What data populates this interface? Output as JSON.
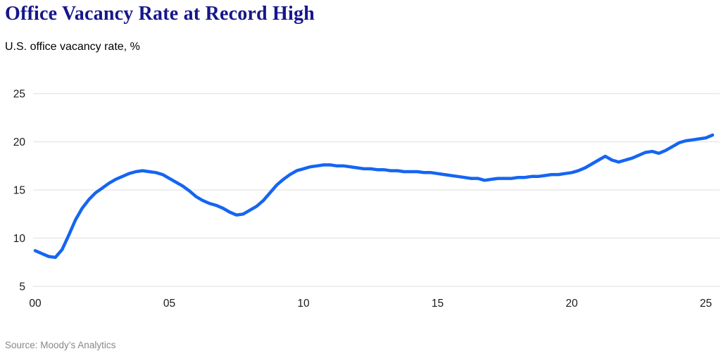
{
  "header": {
    "title": "Office Vacancy Rate at Record High",
    "subtitle": "U.S. office vacancy rate, %"
  },
  "footer": {
    "source": "Source: Moody’s Analytics"
  },
  "chart_data": {
    "type": "line",
    "title": "Office Vacancy Rate at Record High",
    "subtitle": "U.S. office vacancy rate, %",
    "source": "Source: Moody’s Analytics",
    "xlabel": "",
    "ylabel": "",
    "frequency": "quarterly",
    "x_start": 2000,
    "x_step": 0.25,
    "x_end": 2025.25,
    "series": [
      {
        "name": "U.S. office vacancy rate (%)",
        "values": [
          8.7,
          8.4,
          8.1,
          8.0,
          8.8,
          10.3,
          11.9,
          13.1,
          14.0,
          14.7,
          15.2,
          15.7,
          16.1,
          16.4,
          16.7,
          16.9,
          17.0,
          16.9,
          16.8,
          16.6,
          16.2,
          15.8,
          15.4,
          14.9,
          14.3,
          13.9,
          13.6,
          13.4,
          13.1,
          12.7,
          12.4,
          12.5,
          12.9,
          13.3,
          13.9,
          14.7,
          15.5,
          16.1,
          16.6,
          17.0,
          17.2,
          17.4,
          17.5,
          17.6,
          17.6,
          17.5,
          17.5,
          17.4,
          17.3,
          17.2,
          17.2,
          17.1,
          17.1,
          17.0,
          17.0,
          16.9,
          16.9,
          16.9,
          16.8,
          16.8,
          16.7,
          16.6,
          16.5,
          16.4,
          16.3,
          16.2,
          16.2,
          16.0,
          16.1,
          16.2,
          16.2,
          16.2,
          16.3,
          16.3,
          16.4,
          16.4,
          16.5,
          16.6,
          16.6,
          16.7,
          16.8,
          17.0,
          17.3,
          17.7,
          18.1,
          18.5,
          18.1,
          17.9,
          18.1,
          18.3,
          18.6,
          18.9,
          19.0,
          18.8,
          19.1,
          19.5,
          19.9,
          20.1,
          20.2,
          20.3,
          20.4,
          20.7
        ]
      }
    ],
    "yticks": [
      5,
      10,
      15,
      20,
      25
    ],
    "xticks": [
      {
        "year": 2000,
        "label": "00"
      },
      {
        "year": 2005,
        "label": "05"
      },
      {
        "year": 2010,
        "label": "10"
      },
      {
        "year": 2015,
        "label": "15"
      },
      {
        "year": 2020,
        "label": "20"
      },
      {
        "year": 2025,
        "label": "25"
      }
    ],
    "ylim": [
      5,
      25
    ],
    "grid": "horizontal",
    "legend": "none",
    "colors": {
      "line": "#1565f2",
      "grid": "#e8e8e8",
      "tick_text": "#1a1a1a",
      "title_text": "#16168c",
      "source_text": "#878787"
    }
  }
}
